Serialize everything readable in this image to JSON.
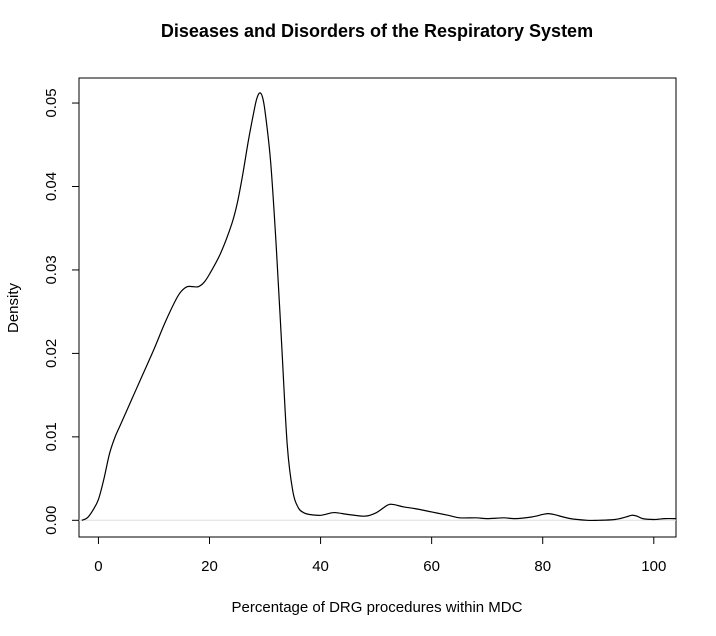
{
  "chart_data": {
    "type": "line",
    "title": "Diseases and Disorders of the Respiratory System",
    "xlabel": "Percentage of DRG procedures within MDC",
    "ylabel": "Density",
    "xlim": [
      -3.5,
      104
    ],
    "ylim": [
      -0.002,
      0.053
    ],
    "xticks": [
      0,
      20,
      40,
      60,
      80,
      100
    ],
    "yticks": [
      0.0,
      0.01,
      0.02,
      0.03,
      0.04,
      0.05
    ],
    "xtick_labels": [
      "0",
      "20",
      "40",
      "60",
      "80",
      "100"
    ],
    "ytick_labels": [
      "0.00",
      "0.01",
      "0.02",
      "0.03",
      "0.04",
      "0.05"
    ],
    "grid": false,
    "series": [
      {
        "x": [
          -3,
          -2,
          -1,
          0,
          1,
          2,
          3,
          4,
          6,
          8,
          10,
          12,
          14,
          15,
          16,
          17,
          18,
          19,
          20,
          22,
          24,
          25,
          26,
          27,
          28,
          28.5,
          29,
          29.5,
          30,
          31,
          32,
          33,
          34,
          35,
          36,
          37,
          38,
          40,
          42,
          43,
          45,
          48,
          50,
          52,
          53,
          55,
          57,
          60,
          63,
          65,
          68,
          70,
          73,
          75,
          78,
          80,
          81,
          82,
          85,
          88,
          90,
          93,
          95,
          96,
          97,
          98,
          100,
          102,
          104
        ],
        "y": [
          0.0,
          0.0003,
          0.0012,
          0.0025,
          0.005,
          0.008,
          0.01,
          0.0115,
          0.0145,
          0.0175,
          0.0205,
          0.0237,
          0.0265,
          0.0275,
          0.028,
          0.028,
          0.028,
          0.0285,
          0.0295,
          0.032,
          0.0355,
          0.038,
          0.0415,
          0.0455,
          0.049,
          0.0505,
          0.0512,
          0.0508,
          0.049,
          0.043,
          0.033,
          0.021,
          0.009,
          0.0035,
          0.0015,
          0.0009,
          0.0007,
          0.0006,
          0.0009,
          0.0009,
          0.0007,
          0.0005,
          0.0009,
          0.0018,
          0.0019,
          0.0016,
          0.0014,
          0.001,
          0.0006,
          0.0003,
          0.0003,
          0.0002,
          0.0003,
          0.0002,
          0.0004,
          0.0007,
          0.0008,
          0.0007,
          0.0002,
          0.0,
          0.0,
          0.0001,
          0.0004,
          0.0006,
          0.0005,
          0.0002,
          0.0001,
          0.0002,
          0.0002
        ]
      }
    ]
  }
}
